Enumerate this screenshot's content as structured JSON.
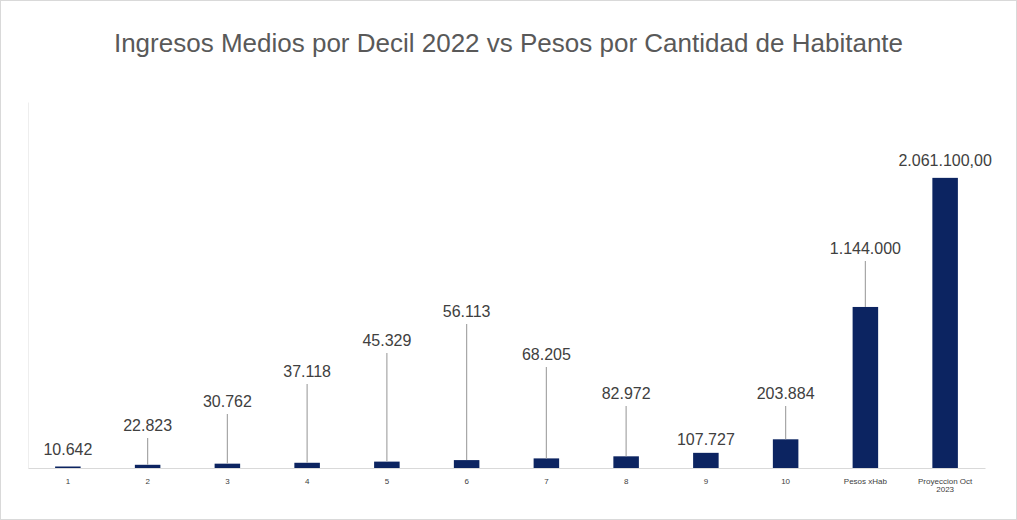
{
  "chart_data": {
    "type": "bar",
    "title": "Ingresos Medios por Decil 2022 vs Pesos por Cantidad de Habitante",
    "categories": [
      "1",
      "2",
      "3",
      "4",
      "5",
      "6",
      "7",
      "8",
      "9",
      "10",
      "Pesos xHab",
      "Proyeccion Oct 2023"
    ],
    "values": [
      10642,
      22823,
      30762,
      37118,
      45329,
      56113,
      68205,
      82972,
      107727,
      203884,
      1144000,
      2061100
    ],
    "value_labels": [
      "10.642",
      "22.823",
      "30.762",
      "37.118",
      "45.329",
      "56.113",
      "68.205",
      "82.972",
      "107.727",
      "203.884",
      "1.144.000",
      "2.061.100,00"
    ],
    "color": "#0c2461",
    "ylim": [
      0,
      2600000
    ],
    "data_labels": true,
    "tick_labels": "x",
    "grid": false
  }
}
